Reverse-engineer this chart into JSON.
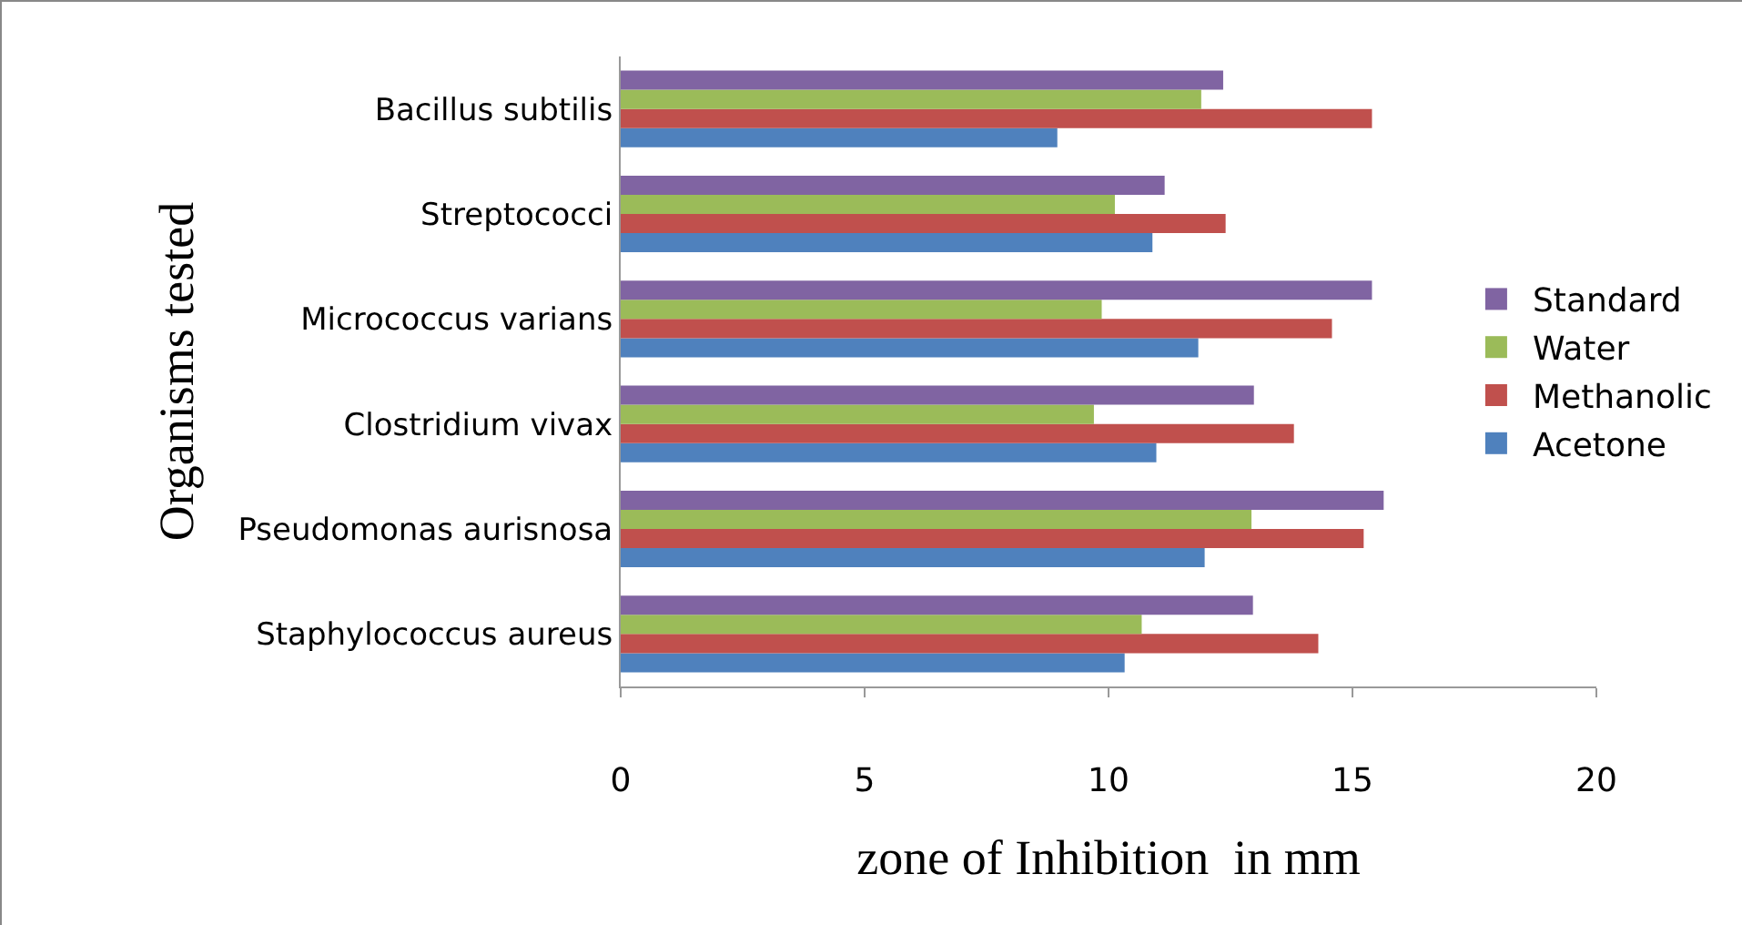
{
  "chart_data": {
    "type": "bar",
    "orientation": "horizontal",
    "xlabel": "zone of Inhibition  in mm",
    "ylabel": "Organisms tested",
    "categories": [
      "Bacillus subtilis",
      "Streptococci",
      "Micrococcus varians",
      "Clostridium vivax",
      "Pseudomonas aurisnosa",
      "Staphylococcus aureus"
    ],
    "series": [
      {
        "name": "Acetone",
        "color": "#4f81bd",
        "values": [
          8.95,
          10.9,
          11.84,
          10.98,
          11.97,
          10.33
        ]
      },
      {
        "name": "Methanolic",
        "color": "#c0504d",
        "values": [
          15.4,
          12.4,
          14.58,
          13.8,
          15.23,
          14.3
        ]
      },
      {
        "name": "Water",
        "color": "#9bbb59",
        "values": [
          11.9,
          10.13,
          9.86,
          9.7,
          12.93,
          10.68
        ]
      },
      {
        "name": "Standard",
        "color": "#8064a2",
        "values": [
          12.35,
          11.15,
          15.4,
          12.98,
          15.64,
          12.96
        ]
      }
    ],
    "xlim": [
      0,
      20
    ],
    "xticks": [
      0,
      5,
      10,
      15,
      20
    ],
    "grid": false,
    "legend": "right"
  }
}
